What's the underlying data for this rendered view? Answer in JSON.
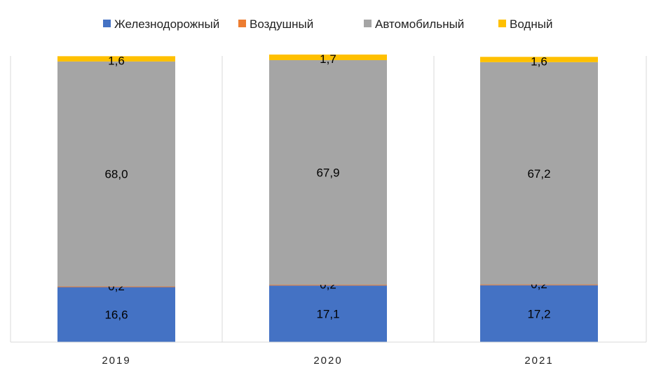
{
  "chart_data": {
    "type": "bar",
    "stacked": true,
    "categories": [
      "2019",
      "2020",
      "2021"
    ],
    "series": [
      {
        "name": "Железнодорожный",
        "color": "#4472C4",
        "values": [
          16.6,
          17.1,
          17.2
        ],
        "labels": [
          "16,6",
          "17,1",
          "17,2"
        ]
      },
      {
        "name": "Воздушный",
        "color": "#ED7D31",
        "values": [
          0.2,
          0.2,
          0.2
        ],
        "labels": [
          "0,2",
          "0,2",
          "0,2"
        ]
      },
      {
        "name": "Автомобильный",
        "color": "#A5A5A5",
        "values": [
          68.0,
          67.9,
          67.2
        ],
        "labels": [
          "68,0",
          "67,9",
          "67,2"
        ]
      },
      {
        "name": "Водный",
        "color": "#FFC000",
        "values": [
          1.6,
          1.7,
          1.6
        ],
        "labels": [
          "1,6",
          "1,7",
          "1,6"
        ]
      }
    ],
    "legend_position": "top",
    "grid": false
  }
}
